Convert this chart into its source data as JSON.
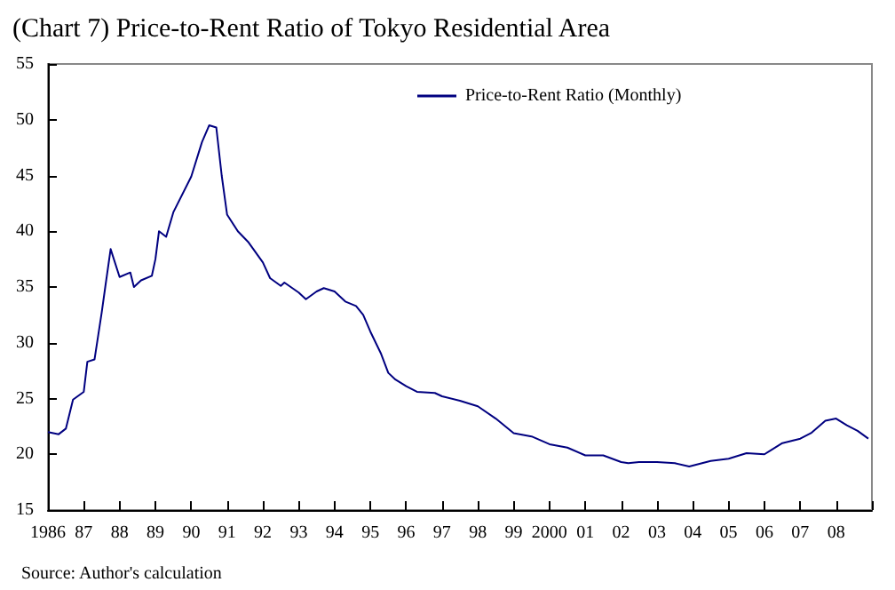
{
  "chart_data": {
    "type": "line",
    "title": "(Chart 7) Price-to-Rent Ratio of Tokyo Residential Area",
    "annotations": [
      "Source: Author's calculation"
    ],
    "series": [
      {
        "name": "Price-to-Rent Ratio (Monthly)",
        "color": "#000080",
        "x": [
          1986.0,
          1986.3,
          1986.5,
          1986.7,
          1987.0,
          1987.1,
          1987.3,
          1987.5,
          1987.6,
          1987.75,
          1988.0,
          1988.3,
          1988.4,
          1988.6,
          1988.9,
          1989.0,
          1989.1,
          1989.3,
          1989.5,
          1990.0,
          1990.3,
          1990.5,
          1990.7,
          1990.85,
          1991.0,
          1991.3,
          1991.6,
          1992.0,
          1992.2,
          1992.5,
          1992.6,
          1993.0,
          1993.2,
          1993.5,
          1993.7,
          1994.0,
          1994.3,
          1994.6,
          1994.8,
          1995.0,
          1995.3,
          1995.5,
          1995.7,
          1996.0,
          1996.3,
          1996.8,
          1997.0,
          1997.5,
          1998.0,
          1998.5,
          1999.0,
          1999.5,
          2000.0,
          2000.5,
          2001.0,
          2001.5,
          2002.0,
          2002.2,
          2002.5,
          2003.0,
          2003.5,
          2003.9,
          2004.5,
          2005.0,
          2005.5,
          2006.0,
          2006.5,
          2007.0,
          2007.3,
          2007.7,
          2008.0,
          2008.3,
          2008.6,
          2008.9
        ],
        "values": [
          22.0,
          21.8,
          22.3,
          24.9,
          25.6,
          28.3,
          28.5,
          32.7,
          35.0,
          38.4,
          35.9,
          36.3,
          35.0,
          35.6,
          36.0,
          37.5,
          40.0,
          39.5,
          41.7,
          44.9,
          48.0,
          49.5,
          49.3,
          45.0,
          41.5,
          40.0,
          39.0,
          37.2,
          35.8,
          35.1,
          35.4,
          34.5,
          33.9,
          34.6,
          34.9,
          34.6,
          33.7,
          33.3,
          32.5,
          31.0,
          29.0,
          27.3,
          26.7,
          26.1,
          25.6,
          25.5,
          25.2,
          24.8,
          24.3,
          23.2,
          21.9,
          21.6,
          20.9,
          20.6,
          19.9,
          19.9,
          19.3,
          19.2,
          19.3,
          19.3,
          19.2,
          18.9,
          19.4,
          19.6,
          20.1,
          20.0,
          21.0,
          21.4,
          21.9,
          23.0,
          23.2,
          22.6,
          22.1,
          21.4
        ]
      }
    ],
    "xlim": [
      1986,
      2009
    ],
    "xticks": [
      {
        "value": 1986,
        "label": "1986"
      },
      {
        "value": 1987,
        "label": "87"
      },
      {
        "value": 1988,
        "label": "88"
      },
      {
        "value": 1989,
        "label": "89"
      },
      {
        "value": 1990,
        "label": "90"
      },
      {
        "value": 1991,
        "label": "91"
      },
      {
        "value": 1992,
        "label": "92"
      },
      {
        "value": 1993,
        "label": "93"
      },
      {
        "value": 1994,
        "label": "94"
      },
      {
        "value": 1995,
        "label": "95"
      },
      {
        "value": 1996,
        "label": "96"
      },
      {
        "value": 1997,
        "label": "97"
      },
      {
        "value": 1998,
        "label": "98"
      },
      {
        "value": 1999,
        "label": "99"
      },
      {
        "value": 2000,
        "label": "2000"
      },
      {
        "value": 2001,
        "label": "01"
      },
      {
        "value": 2002,
        "label": "02"
      },
      {
        "value": 2003,
        "label": "03"
      },
      {
        "value": 2004,
        "label": "04"
      },
      {
        "value": 2005,
        "label": "05"
      },
      {
        "value": 2006,
        "label": "06"
      },
      {
        "value": 2007,
        "label": "07"
      },
      {
        "value": 2008,
        "label": "08"
      },
      {
        "value": 2009,
        "label": null
      }
    ],
    "ylim": [
      15,
      55
    ],
    "yticks": [
      15,
      20,
      25,
      30,
      35,
      40,
      45,
      50,
      55
    ],
    "grid": false,
    "legend": "top",
    "marker": "none",
    "line_style": "solid"
  }
}
